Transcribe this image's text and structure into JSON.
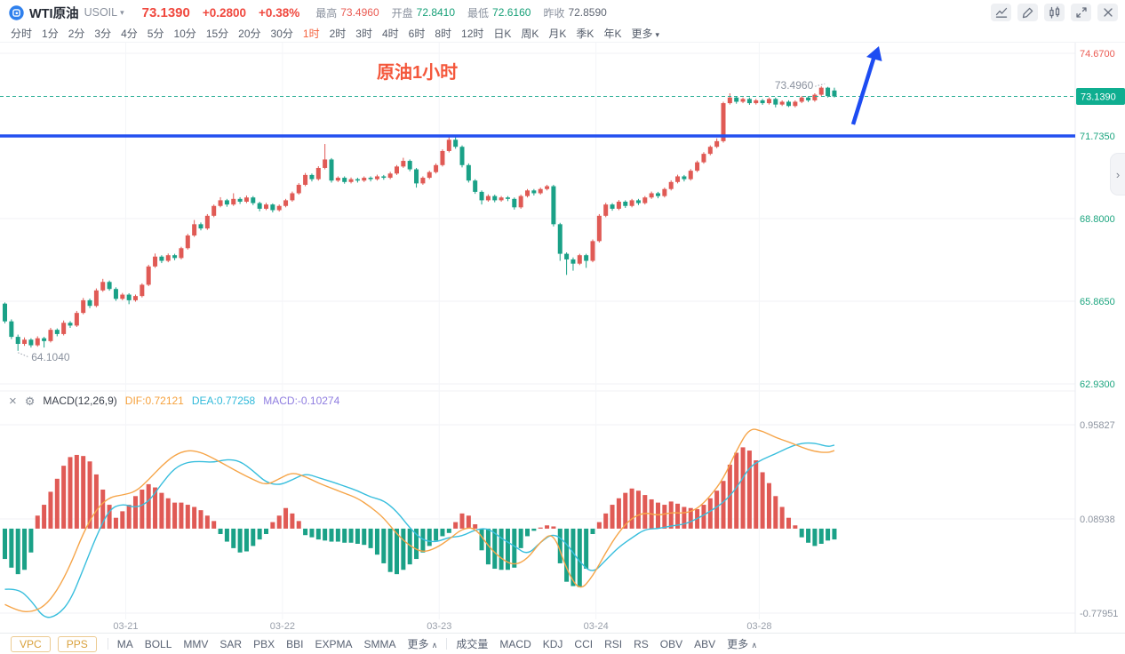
{
  "header": {
    "symbol_name": "WTI原油",
    "symbol_code": "USOIL",
    "dropdown_caret": "▾",
    "price": "73.1390",
    "change": "+0.2800",
    "change_pct": "+0.38%",
    "stats": [
      {
        "label": "最高",
        "value": "73.4960",
        "color": "red"
      },
      {
        "label": "开盘",
        "value": "72.8410",
        "color": "green"
      },
      {
        "label": "最低",
        "value": "72.6160",
        "color": "green"
      },
      {
        "label": "昨收",
        "value": "72.8590",
        "color": "muted"
      }
    ],
    "buttons": [
      {
        "name": "line-chart-button",
        "icon": "trend-line-icon"
      },
      {
        "name": "draw-button",
        "icon": "pencil-icon"
      },
      {
        "name": "candle-style-button",
        "icon": "candles-icon"
      },
      {
        "name": "fullscreen-button",
        "icon": "resize-icon"
      },
      {
        "name": "close-button",
        "icon": "close-icon"
      }
    ]
  },
  "timeframes": {
    "items": [
      "分时",
      "1分",
      "2分",
      "3分",
      "4分",
      "5分",
      "10分",
      "15分",
      "20分",
      "30分",
      "1时",
      "2时",
      "3时",
      "4时",
      "6时",
      "8时",
      "12时",
      "日K",
      "周K",
      "月K",
      "季K",
      "年K"
    ],
    "active": "1时",
    "more_label": "更多",
    "more_caret": "▾"
  },
  "chart": {
    "annotation_text": "原油1小时",
    "high_annotation": "73.4960",
    "low_annotation": "64.1040",
    "current_price": 73.139,
    "current_price_label": "73.1390",
    "support_line_price": 71.735,
    "price_max": 74.67,
    "price_min": 62.93,
    "axis_labels": [
      {
        "price": 74.67,
        "text": "74.6700",
        "color": "#ea5a52"
      },
      {
        "price": 71.735,
        "text": "71.7350",
        "color": "#1ca57f"
      },
      {
        "price": 68.8,
        "text": "68.8000",
        "color": "#1ca57f"
      },
      {
        "price": 65.865,
        "text": "65.8650",
        "color": "#1ca57f"
      },
      {
        "price": 62.93,
        "text": "62.9300",
        "color": "#1ca57f"
      }
    ],
    "days": [
      {
        "label": "03-21",
        "index": 19
      },
      {
        "label": "03-22",
        "index": 43
      },
      {
        "label": "03-23",
        "index": 67
      },
      {
        "label": "03-24",
        "index": 91
      },
      {
        "label": "03-28",
        "index": 116
      }
    ],
    "panel_handle_glyph": "›",
    "candles": [
      [
        65.78,
        65.82,
        65.08,
        65.15
      ],
      [
        65.15,
        65.22,
        64.52,
        64.6
      ],
      [
        64.6,
        64.68,
        64.104,
        64.35
      ],
      [
        64.35,
        64.58,
        64.28,
        64.5
      ],
      [
        64.5,
        64.55,
        64.22,
        64.3
      ],
      [
        64.3,
        64.62,
        64.25,
        64.55
      ],
      [
        64.55,
        64.6,
        64.22,
        64.45
      ],
      [
        64.45,
        64.92,
        64.4,
        64.85
      ],
      [
        64.85,
        64.9,
        64.62,
        64.7
      ],
      [
        64.7,
        65.18,
        64.65,
        65.1
      ],
      [
        65.1,
        65.16,
        64.92,
        65.0
      ],
      [
        65.0,
        65.52,
        64.95,
        65.45
      ],
      [
        65.45,
        65.98,
        65.4,
        65.9
      ],
      [
        65.9,
        65.96,
        65.62,
        65.7
      ],
      [
        65.7,
        66.32,
        65.65,
        66.25
      ],
      [
        66.25,
        66.66,
        66.2,
        66.55
      ],
      [
        66.55,
        66.6,
        66.24,
        66.3
      ],
      [
        66.3,
        66.36,
        65.88,
        65.95
      ],
      [
        65.95,
        66.16,
        65.9,
        66.1
      ],
      [
        66.1,
        66.15,
        65.76,
        65.9
      ],
      [
        65.9,
        66.1,
        65.85,
        66.05
      ],
      [
        66.05,
        66.5,
        66.0,
        66.45
      ],
      [
        66.45,
        67.16,
        66.4,
        67.1
      ],
      [
        67.1,
        67.56,
        67.05,
        67.45
      ],
      [
        67.45,
        67.5,
        67.22,
        67.3
      ],
      [
        67.3,
        67.56,
        67.25,
        67.5
      ],
      [
        67.5,
        67.55,
        67.32,
        67.4
      ],
      [
        67.4,
        67.8,
        67.35,
        67.75
      ],
      [
        67.75,
        68.26,
        67.7,
        68.2
      ],
      [
        68.2,
        68.75,
        68.15,
        68.6
      ],
      [
        68.6,
        68.66,
        68.38,
        68.45
      ],
      [
        68.45,
        68.96,
        68.4,
        68.9
      ],
      [
        68.9,
        69.3,
        68.85,
        69.25
      ],
      [
        69.25,
        69.56,
        69.2,
        69.45
      ],
      [
        69.45,
        69.5,
        69.22,
        69.3
      ],
      [
        69.3,
        69.7,
        69.25,
        69.5
      ],
      [
        69.5,
        69.56,
        69.32,
        69.4
      ],
      [
        69.4,
        69.62,
        69.35,
        69.55
      ],
      [
        69.55,
        69.6,
        69.28,
        69.35
      ],
      [
        69.35,
        69.4,
        69.06,
        69.15
      ],
      [
        69.15,
        69.36,
        69.1,
        69.3
      ],
      [
        69.3,
        69.34,
        69.02,
        69.1
      ],
      [
        69.1,
        69.3,
        69.05,
        69.25
      ],
      [
        69.25,
        69.5,
        69.2,
        69.45
      ],
      [
        69.45,
        69.76,
        69.4,
        69.7
      ],
      [
        69.7,
        70.06,
        69.65,
        70.0
      ],
      [
        70.0,
        70.42,
        69.95,
        70.35
      ],
      [
        70.35,
        70.4,
        70.12,
        70.2
      ],
      [
        70.2,
        70.66,
        70.15,
        70.6
      ],
      [
        70.6,
        71.45,
        70.55,
        70.9
      ],
      [
        70.9,
        70.95,
        70.08,
        70.15
      ],
      [
        70.15,
        70.3,
        70.1,
        70.25
      ],
      [
        70.25,
        70.3,
        70.04,
        70.1
      ],
      [
        70.1,
        70.26,
        70.05,
        70.2
      ],
      [
        70.2,
        70.25,
        70.08,
        70.15
      ],
      [
        70.15,
        70.3,
        70.1,
        70.25
      ],
      [
        70.25,
        70.3,
        70.12,
        70.2
      ],
      [
        70.2,
        70.36,
        70.15,
        70.3
      ],
      [
        70.3,
        70.35,
        70.18,
        70.25
      ],
      [
        70.25,
        70.46,
        70.2,
        70.4
      ],
      [
        70.4,
        70.7,
        70.35,
        70.65
      ],
      [
        70.65,
        70.96,
        70.6,
        70.85
      ],
      [
        70.85,
        70.9,
        70.48,
        70.55
      ],
      [
        70.55,
        70.6,
        69.9,
        70.05
      ],
      [
        70.05,
        70.3,
        70.0,
        70.25
      ],
      [
        70.25,
        70.5,
        70.2,
        70.45
      ],
      [
        70.45,
        70.76,
        70.4,
        70.7
      ],
      [
        70.7,
        71.26,
        70.65,
        71.2
      ],
      [
        71.2,
        71.74,
        71.15,
        71.6
      ],
      [
        71.6,
        71.7,
        71.28,
        71.35
      ],
      [
        71.35,
        71.4,
        70.62,
        70.7
      ],
      [
        70.7,
        70.76,
        70.08,
        70.15
      ],
      [
        70.15,
        70.2,
        69.68,
        69.75
      ],
      [
        69.75,
        69.8,
        69.3,
        69.45
      ],
      [
        69.45,
        69.66,
        69.4,
        69.6
      ],
      [
        69.6,
        69.65,
        69.38,
        69.45
      ],
      [
        69.45,
        69.6,
        69.4,
        69.55
      ],
      [
        69.55,
        69.6,
        69.42,
        69.5
      ],
      [
        69.5,
        69.55,
        69.12,
        69.2
      ],
      [
        69.2,
        69.65,
        69.15,
        69.6
      ],
      [
        69.6,
        69.85,
        69.55,
        69.8
      ],
      [
        69.8,
        69.85,
        69.62,
        69.7
      ],
      [
        69.7,
        69.9,
        69.65,
        69.85
      ],
      [
        69.85,
        70.0,
        69.8,
        69.95
      ],
      [
        69.95,
        70.0,
        68.52,
        68.6
      ],
      [
        68.6,
        68.65,
        67.3,
        67.55
      ],
      [
        67.55,
        67.6,
        66.8,
        67.35
      ],
      [
        67.35,
        67.42,
        66.95,
        67.2
      ],
      [
        67.2,
        67.55,
        67.15,
        67.5
      ],
      [
        67.5,
        67.55,
        67.05,
        67.3
      ],
      [
        67.3,
        68.06,
        67.25,
        68.0
      ],
      [
        68.0,
        68.96,
        67.95,
        68.9
      ],
      [
        68.9,
        69.36,
        68.85,
        69.3
      ],
      [
        69.3,
        69.35,
        69.08,
        69.15
      ],
      [
        69.15,
        69.46,
        69.1,
        69.4
      ],
      [
        69.4,
        69.45,
        69.18,
        69.25
      ],
      [
        69.25,
        69.5,
        69.2,
        69.45
      ],
      [
        69.45,
        69.5,
        69.28,
        69.35
      ],
      [
        69.35,
        69.6,
        69.3,
        69.55
      ],
      [
        69.55,
        69.76,
        69.5,
        69.7
      ],
      [
        69.7,
        69.75,
        69.52,
        69.6
      ],
      [
        69.6,
        69.9,
        69.55,
        69.85
      ],
      [
        69.85,
        70.16,
        69.8,
        70.1
      ],
      [
        70.1,
        70.36,
        70.05,
        70.3
      ],
      [
        70.3,
        70.35,
        70.12,
        70.2
      ],
      [
        70.2,
        70.56,
        70.15,
        70.5
      ],
      [
        70.5,
        70.86,
        70.45,
        70.8
      ],
      [
        70.8,
        71.16,
        70.75,
        71.1
      ],
      [
        71.1,
        71.4,
        71.05,
        71.35
      ],
      [
        71.35,
        71.65,
        71.3,
        71.55
      ],
      [
        71.55,
        72.95,
        71.5,
        72.9
      ],
      [
        72.9,
        73.25,
        72.85,
        73.1
      ],
      [
        73.1,
        73.15,
        72.88,
        72.95
      ],
      [
        72.95,
        73.1,
        72.9,
        73.05
      ],
      [
        73.05,
        73.1,
        72.84,
        72.9
      ],
      [
        72.9,
        73.05,
        72.85,
        73.0
      ],
      [
        73.0,
        73.05,
        72.84,
        72.9
      ],
      [
        72.9,
        73.1,
        72.85,
        73.05
      ],
      [
        73.05,
        73.1,
        72.75,
        72.85
      ],
      [
        72.85,
        73.0,
        72.8,
        72.95
      ],
      [
        72.95,
        73.0,
        72.76,
        72.8
      ],
      [
        72.8,
        73.0,
        72.75,
        72.95
      ],
      [
        72.95,
        73.15,
        72.9,
        73.1
      ],
      [
        73.1,
        73.15,
        72.94,
        73.0
      ],
      [
        73.0,
        73.25,
        72.95,
        73.2
      ],
      [
        73.2,
        73.496,
        73.15,
        73.45
      ],
      [
        73.45,
        73.48,
        73.1,
        73.15
      ],
      [
        73.35,
        73.45,
        73.1,
        73.139
      ]
    ]
  },
  "macd": {
    "close_glyph": "×",
    "gear_glyph": "⚙",
    "title": "MACD(12,26,9)",
    "dif_label": "DIF:0.72121",
    "dea_label": "DEA:0.77258",
    "macd_label": "MACD:-0.10274",
    "axis_labels": [
      {
        "value": 0.95827,
        "text": "0.95827"
      },
      {
        "value": 0.08938,
        "text": "0.08938"
      },
      {
        "value": -0.77951,
        "text": "-0.77951"
      }
    ],
    "hist": [
      -0.28,
      -0.36,
      -0.42,
      -0.38,
      -0.22,
      0.12,
      0.22,
      0.34,
      0.46,
      0.58,
      0.66,
      0.68,
      0.67,
      0.62,
      0.5,
      0.36,
      0.22,
      0.1,
      0.16,
      0.22,
      0.3,
      0.36,
      0.41,
      0.38,
      0.33,
      0.28,
      0.24,
      0.24,
      0.22,
      0.2,
      0.17,
      0.12,
      0.07,
      -0.05,
      -0.12,
      -0.18,
      -0.22,
      -0.21,
      -0.16,
      -0.1,
      -0.05,
      0.06,
      0.12,
      0.19,
      0.14,
      0.07,
      -0.06,
      -0.08,
      -0.1,
      -0.11,
      -0.12,
      -0.12,
      -0.13,
      -0.13,
      -0.14,
      -0.15,
      -0.18,
      -0.24,
      -0.32,
      -0.4,
      -0.42,
      -0.38,
      -0.33,
      -0.28,
      -0.22,
      -0.16,
      -0.11,
      -0.07,
      -0.04,
      0.06,
      0.14,
      0.12,
      0.04,
      -0.2,
      -0.33,
      -0.37,
      -0.38,
      -0.38,
      -0.36,
      -0.18,
      -0.07,
      -0.02,
      0.01,
      0.03,
      0.02,
      -0.32,
      -0.49,
      -0.53,
      -0.54,
      -0.37,
      -0.05,
      0.06,
      0.14,
      0.22,
      0.28,
      0.33,
      0.37,
      0.35,
      0.31,
      0.27,
      0.24,
      0.22,
      0.25,
      0.23,
      0.2,
      0.19,
      0.18,
      0.22,
      0.28,
      0.35,
      0.44,
      0.59,
      0.7,
      0.75,
      0.72,
      0.63,
      0.52,
      0.42,
      0.3,
      0.2,
      0.1,
      0.03,
      -0.08,
      -0.13,
      -0.16,
      -0.14,
      -0.11,
      -0.1
    ],
    "dif_keypoints": [
      [
        0,
        -0.7
      ],
      [
        2,
        -0.76
      ],
      [
        4,
        -0.77
      ],
      [
        6,
        -0.72
      ],
      [
        9,
        -0.5
      ],
      [
        11,
        -0.18
      ],
      [
        13,
        0.1
      ],
      [
        15,
        0.26
      ],
      [
        17,
        0.32
      ],
      [
        19,
        0.3
      ],
      [
        21,
        0.38
      ],
      [
        23,
        0.52
      ],
      [
        25,
        0.64
      ],
      [
        27,
        0.72
      ],
      [
        29,
        0.73
      ],
      [
        31,
        0.68
      ],
      [
        34,
        0.58
      ],
      [
        37,
        0.48
      ],
      [
        40,
        0.4
      ],
      [
        42,
        0.46
      ],
      [
        44,
        0.52
      ],
      [
        46,
        0.48
      ],
      [
        48,
        0.42
      ],
      [
        51,
        0.35
      ],
      [
        54,
        0.28
      ],
      [
        56,
        0.2
      ],
      [
        58,
        0.1
      ],
      [
        60,
        -0.05
      ],
      [
        62,
        -0.16
      ],
      [
        64,
        -0.22
      ],
      [
        66,
        -0.18
      ],
      [
        68,
        -0.1
      ],
      [
        70,
        0.0
      ],
      [
        71,
        0.05
      ],
      [
        72,
        0.01
      ],
      [
        74,
        -0.16
      ],
      [
        76,
        -0.28
      ],
      [
        78,
        -0.34
      ],
      [
        80,
        -0.28
      ],
      [
        82,
        -0.12
      ],
      [
        83,
        -0.04
      ],
      [
        84,
        -0.03
      ],
      [
        86,
        -0.38
      ],
      [
        87,
        -0.52
      ],
      [
        88,
        -0.58
      ],
      [
        89,
        -0.55
      ],
      [
        90,
        -0.44
      ],
      [
        92,
        -0.22
      ],
      [
        94,
        -0.03
      ],
      [
        96,
        0.1
      ],
      [
        98,
        0.15
      ],
      [
        100,
        0.12
      ],
      [
        102,
        0.15
      ],
      [
        104,
        0.14
      ],
      [
        106,
        0.18
      ],
      [
        108,
        0.3
      ],
      [
        110,
        0.46
      ],
      [
        112,
        0.72
      ],
      [
        113,
        0.85
      ],
      [
        114,
        0.93
      ],
      [
        115,
        0.95
      ],
      [
        116,
        0.9
      ],
      [
        118,
        0.84
      ],
      [
        120,
        0.8
      ],
      [
        122,
        0.75
      ],
      [
        124,
        0.71
      ],
      [
        126,
        0.7
      ],
      [
        127,
        0.72
      ]
    ]
  },
  "bottom_bar": {
    "buttons": [
      "VPC",
      "PPS"
    ],
    "overlay_indicators": [
      "MA",
      "BOLL",
      "MMV",
      "SAR",
      "PBX",
      "BBI",
      "EXPMA",
      "SMMA"
    ],
    "sub_indicators": [
      "成交量",
      "MACD",
      "KDJ",
      "CCI",
      "RSI",
      "RS",
      "OBV",
      "ABV"
    ],
    "more_label": "更多",
    "more_caret": "∧"
  },
  "colors": {
    "up": "#e05a55",
    "down": "#1aa187",
    "blue_line": "#2450f0",
    "arrow": "#1d4cf2",
    "dashed_current": "#2aae96",
    "badge": "#0fae90",
    "annotation_orange": "#f4573b",
    "grid": "#f1f2f6",
    "vgrid": "#f4f5f8",
    "axis_sep": "#e9ebf0",
    "muted_label": "#9aa0ab",
    "dif_line": "#f6a549",
    "dea_line": "#38bedd"
  }
}
